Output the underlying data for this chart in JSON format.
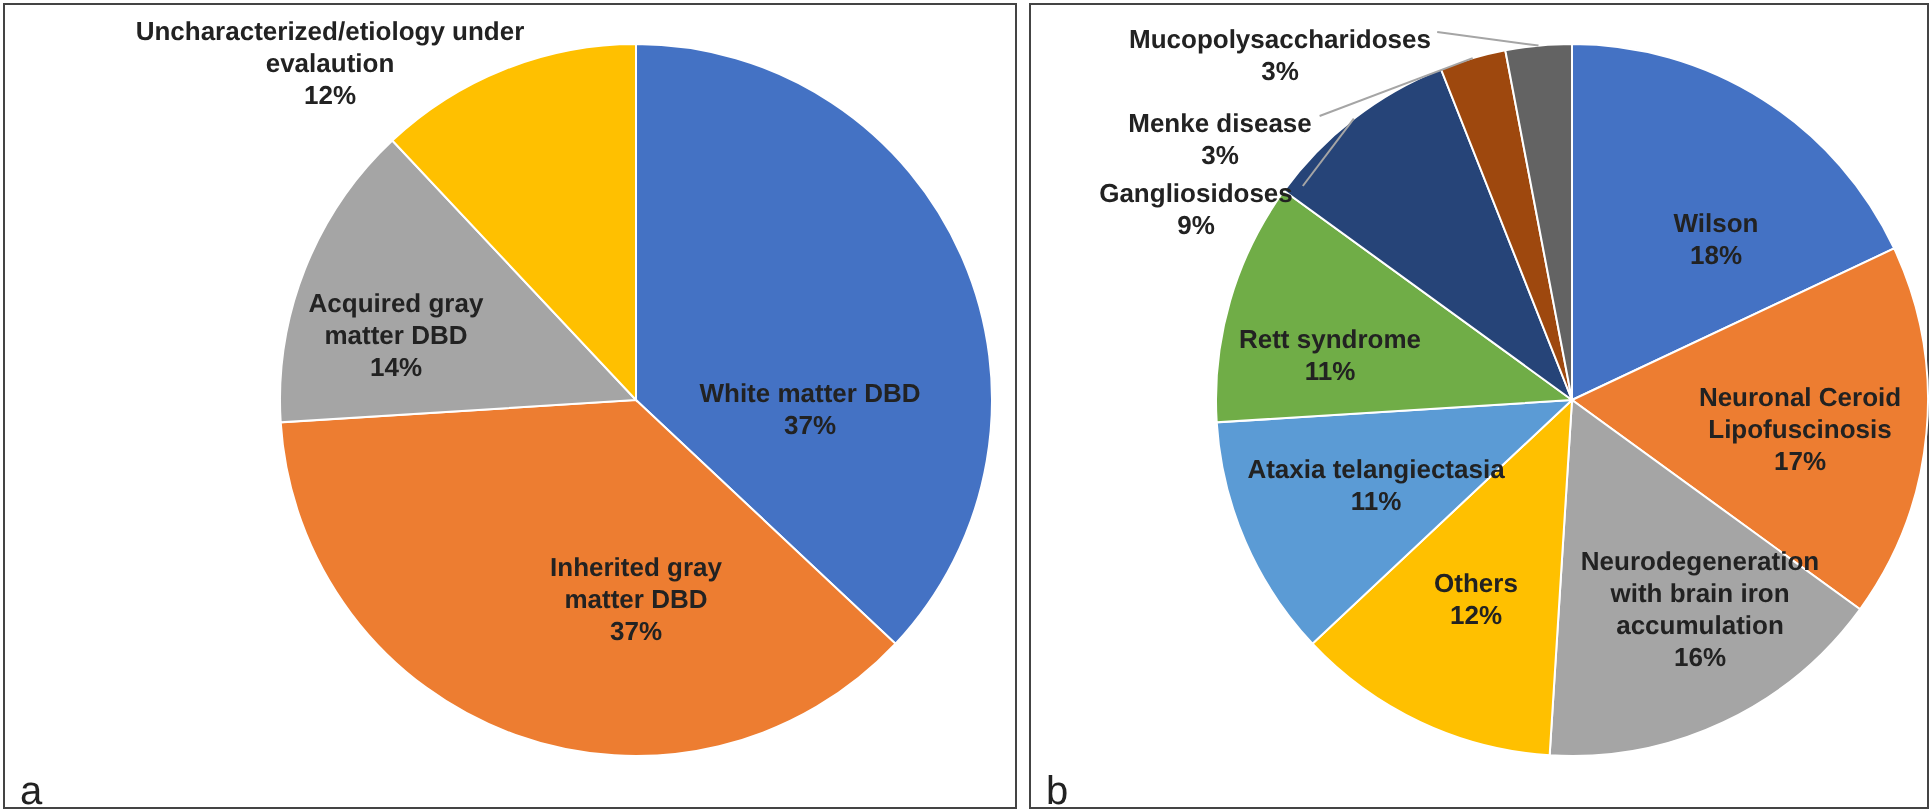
{
  "chart_data": [
    {
      "type": "pie",
      "categories": [
        "White matter DBD",
        "Inherited gray matter DBD",
        "Acquired gray matter DBD",
        "Uncharacterized/etiology under evalaution"
      ],
      "values": [
        37,
        37,
        14,
        12
      ],
      "value_labels": [
        "37%",
        "37%",
        "14%",
        "12%"
      ],
      "colors": [
        "#4472c4",
        "#ed7d31",
        "#a5a5a5",
        "#ffc000"
      ],
      "annotations": [
        "a"
      ]
    },
    {
      "type": "pie",
      "categories": [
        "Wilson",
        "Neuronal Ceroid Lipofuscinosis",
        "Neurodegeneration with brain iron accumulation",
        "Others",
        "Ataxia telangiectasia",
        "Rett syndrome",
        "Gangliosidoses",
        "Menke disease",
        "Mucopolysaccharidoses"
      ],
      "values": [
        18,
        17,
        16,
        12,
        11,
        11,
        9,
        3,
        3
      ],
      "value_labels": [
        "18%",
        "17%",
        "16%",
        "12%",
        "11%",
        "11%",
        "9%",
        "3%",
        "3%"
      ],
      "colors": [
        "#4472c4",
        "#ed7d31",
        "#a5a5a5",
        "#ffc000",
        "#5b9bd5",
        "#70ad47",
        "#264478",
        "#9e480e",
        "#636363"
      ],
      "annotations": [
        "b"
      ]
    }
  ]
}
